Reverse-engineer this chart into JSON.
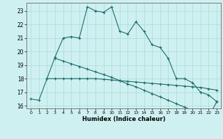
{
  "title": "",
  "xlabel": "Humidex (Indice chaleur)",
  "bg_color": "#cff0f0",
  "line_color": "#1a6b6b",
  "grid_color": "#a8dada",
  "xlim": [
    -0.5,
    23.5
  ],
  "ylim": [
    15.8,
    23.6
  ],
  "yticks": [
    16,
    17,
    18,
    19,
    20,
    21,
    22,
    23
  ],
  "xticks": [
    0,
    1,
    2,
    3,
    4,
    5,
    6,
    7,
    8,
    9,
    10,
    11,
    12,
    13,
    14,
    15,
    16,
    17,
    18,
    19,
    20,
    21,
    22,
    23
  ],
  "curve1_x": [
    0,
    1,
    2,
    3,
    4,
    5,
    6,
    7,
    8,
    9,
    10,
    11,
    12,
    13,
    14,
    15,
    16,
    17,
    18,
    19,
    20,
    21,
    22,
    23
  ],
  "curve1_y": [
    16.5,
    16.4,
    18.0,
    19.6,
    21.0,
    21.1,
    21.0,
    23.3,
    23.0,
    22.9,
    23.3,
    21.5,
    21.3,
    22.2,
    21.5,
    20.5,
    20.3,
    19.5,
    18.0,
    18.0,
    17.7,
    17.0,
    16.8,
    16.3
  ],
  "curve2_x": [
    2,
    3,
    4,
    5,
    6,
    7,
    8,
    9,
    10,
    11,
    12,
    13,
    14,
    15,
    16,
    17,
    18,
    19,
    20,
    21,
    22,
    23
  ],
  "curve2_y": [
    18.0,
    18.0,
    18.0,
    18.0,
    18.0,
    18.0,
    18.0,
    17.95,
    17.9,
    17.85,
    17.8,
    17.75,
    17.7,
    17.65,
    17.6,
    17.55,
    17.5,
    17.45,
    17.4,
    17.35,
    17.25,
    17.15
  ],
  "curve3_x": [
    3,
    4,
    5,
    6,
    7,
    8,
    9,
    10,
    11,
    12,
    13,
    14,
    15,
    16,
    17,
    18,
    19,
    20,
    21,
    22,
    23
  ],
  "curve3_y": [
    19.5,
    19.3,
    19.1,
    18.9,
    18.7,
    18.5,
    18.3,
    18.1,
    17.85,
    17.6,
    17.4,
    17.15,
    16.9,
    16.65,
    16.4,
    16.15,
    15.9,
    15.65,
    15.4,
    15.15,
    16.3
  ]
}
